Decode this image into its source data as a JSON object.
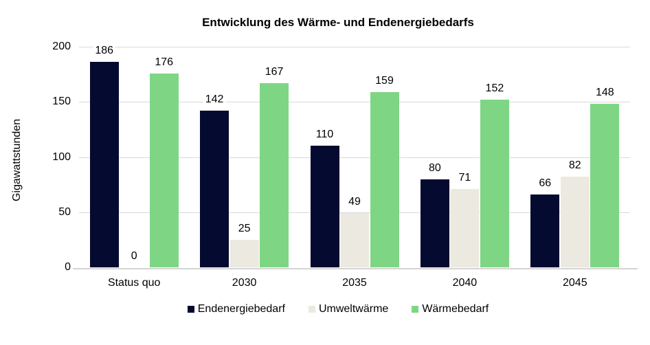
{
  "chart_data": {
    "type": "bar",
    "title": "Entwicklung des Wärme- und Endenergiebedarfs",
    "ylabel": "Gigawattstunden",
    "categories": [
      "Status quo",
      "2030",
      "2035",
      "2040",
      "2045"
    ],
    "series": [
      {
        "name": "Endenergiebedarf",
        "color": "#050a30",
        "values": [
          186,
          142,
          110,
          80,
          66
        ]
      },
      {
        "name": "Umweltwärme",
        "color": "#ece9e1",
        "values": [
          0,
          25,
          49,
          71,
          82
        ]
      },
      {
        "name": "Wärmebedarf",
        "color": "#7ed684",
        "values": [
          176,
          167,
          159,
          152,
          148
        ]
      }
    ],
    "ylim": [
      0,
      200
    ],
    "yticks": [
      0,
      50,
      100,
      150,
      200
    ],
    "grid": true,
    "legend_position": "bottom",
    "colors": {
      "gridline": "#d9d9d9",
      "axis_line": "#d4d4d4",
      "text": "#000000",
      "background": "#ffffff"
    }
  }
}
